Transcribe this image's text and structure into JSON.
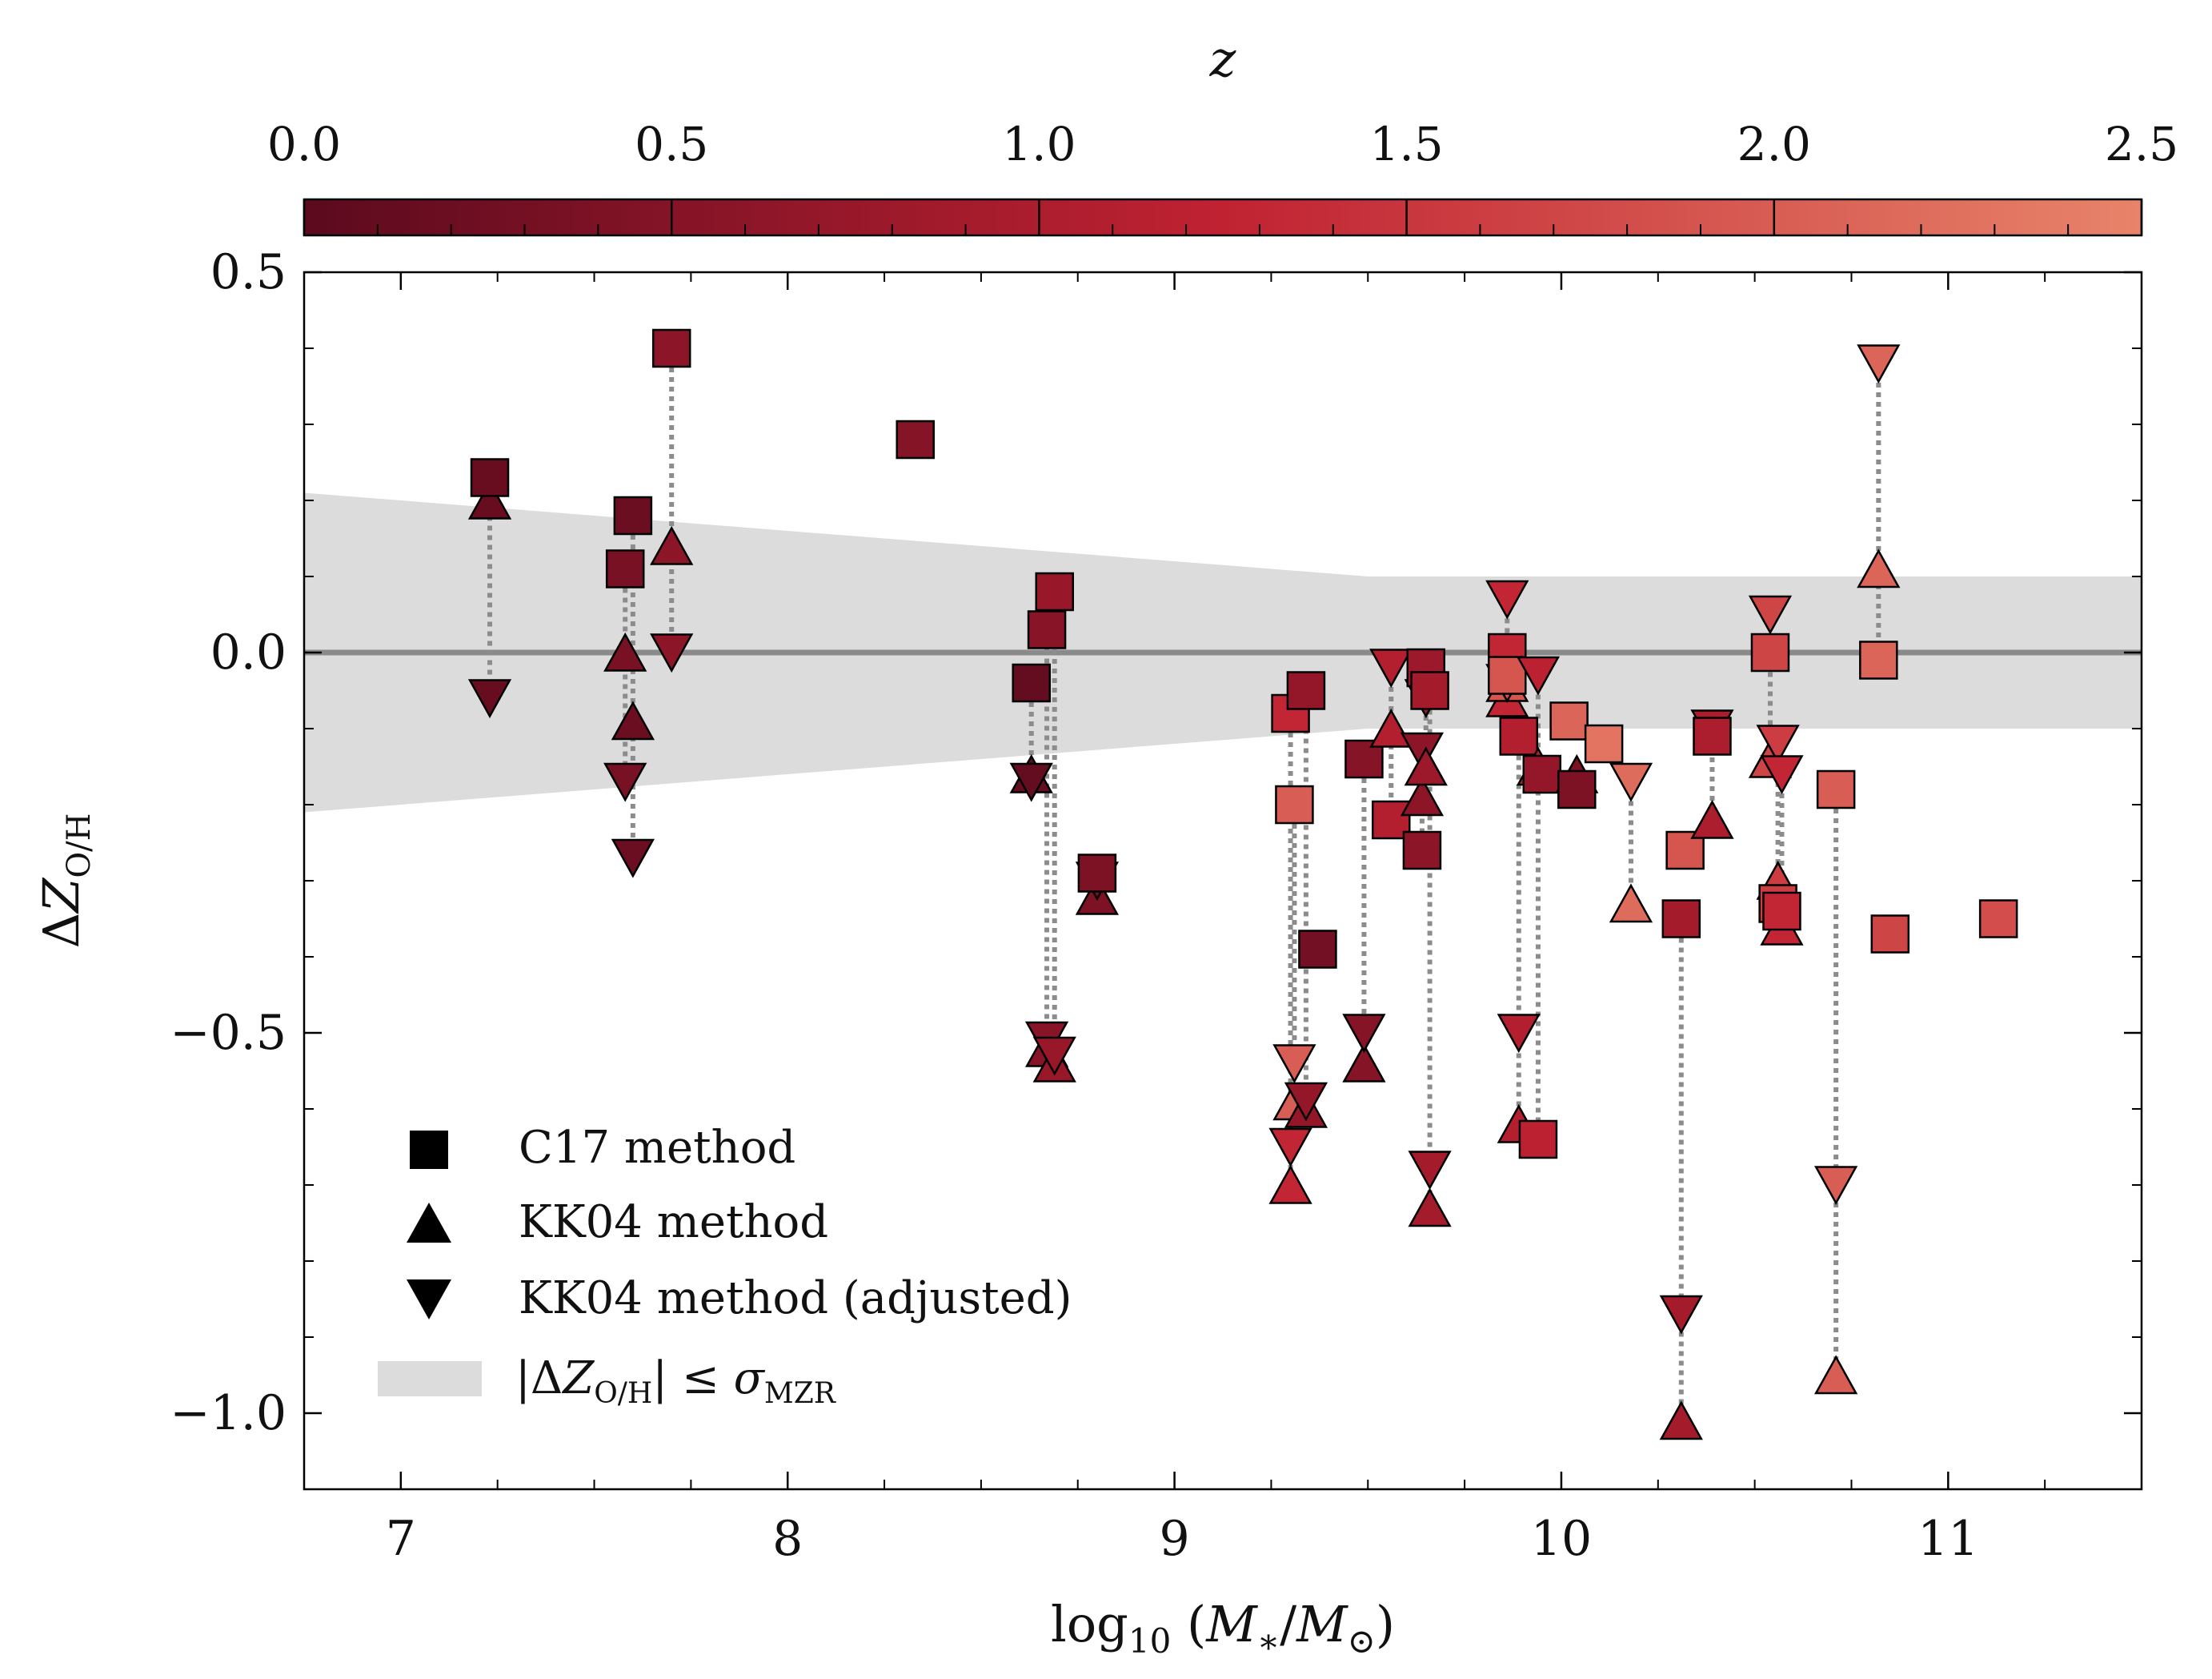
{
  "chart_data": {
    "type": "scatter",
    "xlabel": "log10 (M*/M⊙)",
    "ylabel": "ΔZO/H",
    "xlim": [
      6.75,
      11.5
    ],
    "ylim": [
      -1.1,
      0.5
    ],
    "xticks": [
      7,
      8,
      9,
      10,
      11
    ],
    "xtick_labels": [
      "7",
      "8",
      "9",
      "10",
      "11"
    ],
    "yticks": [
      0.5,
      0.0,
      -0.5,
      -1.0
    ],
    "ytick_labels": [
      "0.5",
      "0.0",
      "−0.5",
      "−1.0"
    ],
    "grid": false,
    "zero_line": 0.0,
    "colorbar": {
      "label": "z",
      "range": [
        0.0,
        2.5
      ],
      "ticks": [
        0.0,
        0.5,
        1.0,
        1.5,
        2.0,
        2.5
      ],
      "tick_labels": [
        "0.0",
        "0.5",
        "1.0",
        "1.5",
        "2.0",
        "2.5"
      ],
      "color_low": "#5c0a1e",
      "color_mid": "#c02232",
      "color_high": "#e8846a"
    },
    "sigma_band": {
      "label": "|ΔZO/H| ≤ σMZR",
      "color": "#dcdcdc",
      "x": [
        6.75,
        9.5,
        11.5
      ],
      "half_width": [
        0.21,
        0.1,
        0.1
      ]
    },
    "legend": {
      "position": "lower-left",
      "entries": [
        {
          "label": "C17 method",
          "marker": "square"
        },
        {
          "label": "KK04 method",
          "marker": "triangle-up"
        },
        {
          "label": "KK04 method (adjusted)",
          "marker": "triangle-down"
        },
        {
          "label": "|ΔZO/H| ≤ σMZR",
          "marker": "band"
        }
      ]
    },
    "galaxies": [
      {
        "x": 7.23,
        "z": 0.15,
        "c17": 0.23,
        "kk04": 0.2,
        "kk04_adj": -0.06
      },
      {
        "x": 7.58,
        "z": 0.35,
        "c17": 0.11,
        "kk04": 0.0,
        "kk04_adj": -0.17
      },
      {
        "x": 7.6,
        "z": 0.2,
        "c17": 0.18,
        "kk04": -0.09,
        "kk04_adj": -0.27
      },
      {
        "x": 7.7,
        "z": 0.6,
        "c17": 0.4,
        "kk04": 0.14,
        "kk04_adj": 0.0
      },
      {
        "x": 8.33,
        "z": 0.5,
        "c17": 0.28
      },
      {
        "x": 8.63,
        "z": 0.1,
        "c17": -0.04,
        "kk04": -0.16,
        "kk04_adj": -0.17
      },
      {
        "x": 8.67,
        "z": 0.55,
        "c17": 0.03,
        "kk04": -0.52,
        "kk04_adj": -0.51
      },
      {
        "x": 8.69,
        "z": 0.75,
        "c17": 0.08,
        "kk04": -0.54,
        "kk04_adj": -0.53
      },
      {
        "x": 8.8,
        "z": 0.4,
        "c17": -0.29,
        "kk04": -0.32,
        "kk04_adj": -0.3
      },
      {
        "x": 9.3,
        "z": 1.3,
        "c17": -0.08,
        "kk04": -0.7,
        "kk04_adj": -0.65
      },
      {
        "x": 9.31,
        "z": 2.0,
        "c17": -0.2,
        "kk04": -0.59,
        "kk04_adj": -0.54
      },
      {
        "x": 9.34,
        "z": 0.7,
        "c17": -0.05,
        "kk04": -0.6,
        "kk04_adj": -0.59
      },
      {
        "x": 9.37,
        "z": 0.3,
        "c17": -0.39
      },
      {
        "x": 9.49,
        "z": 0.5,
        "c17": -0.14,
        "kk04": -0.54,
        "kk04_adj": -0.5
      },
      {
        "x": 9.56,
        "z": 1.1,
        "c17": -0.22,
        "kk04": -0.1,
        "kk04_adj": -0.02
      },
      {
        "x": 9.64,
        "z": 0.6,
        "c17": -0.26,
        "kk04": -0.19,
        "kk04_adj": -0.13
      },
      {
        "x": 9.65,
        "z": 0.8,
        "c17": -0.02,
        "kk04": -0.15,
        "kk04_adj": -0.06
      },
      {
        "x": 9.66,
        "z": 0.9,
        "c17": -0.05,
        "kk04": -0.73,
        "kk04_adj": -0.68
      },
      {
        "x": 9.86,
        "z": 1.3,
        "c17": -0.0,
        "kk04": -0.06,
        "kk04_adj": 0.07
      },
      {
        "x": 9.86,
        "z": 1.9,
        "c17": -0.03,
        "kk04": -0.04,
        "kk04_adj": -0.04
      },
      {
        "x": 9.89,
        "z": 1.1,
        "c17": -0.11,
        "kk04": -0.62,
        "kk04_adj": -0.5
      },
      {
        "x": 9.94,
        "z": 1.2,
        "c17": -0.64,
        "kk04": -0.15,
        "kk04_adj": -0.03
      },
      {
        "x": 9.95,
        "z": 0.7,
        "c17": -0.16
      },
      {
        "x": 10.04,
        "z": 0.4,
        "c17": -0.18,
        "kk04": -0.16
      },
      {
        "x": 10.02,
        "z": 2.1,
        "c17": -0.09
      },
      {
        "x": 10.11,
        "z": 2.3,
        "c17": -0.12
      },
      {
        "x": 10.18,
        "z": 2.2,
        "kk04": -0.33,
        "kk04_adj": -0.17
      },
      {
        "x": 10.31,
        "z": 0.9,
        "c17": -0.35,
        "kk04": -1.01,
        "kk04_adj": -0.87
      },
      {
        "x": 10.32,
        "z": 1.9,
        "c17": -0.26
      },
      {
        "x": 10.39,
        "z": 1.0,
        "c17": -0.11,
        "kk04": -0.22,
        "kk04_adj": -0.1
      },
      {
        "x": 10.54,
        "z": 1.7,
        "c17": 0.0,
        "kk04": -0.14,
        "kk04_adj": 0.05
      },
      {
        "x": 10.56,
        "z": 1.6,
        "c17": -0.33,
        "kk04": -0.3,
        "kk04_adj": -0.12
      },
      {
        "x": 10.57,
        "z": 1.3,
        "c17": -0.34,
        "kk04": -0.36,
        "kk04_adj": -0.16
      },
      {
        "x": 10.71,
        "z": 2.0,
        "c17": -0.18,
        "kk04": -0.95,
        "kk04_adj": -0.7
      },
      {
        "x": 10.82,
        "z": 2.1,
        "c17": -0.01,
        "kk04": 0.11,
        "kk04_adj": 0.38
      },
      {
        "x": 10.85,
        "z": 1.7,
        "c17": -0.37
      },
      {
        "x": 11.13,
        "z": 1.8,
        "c17": -0.35
      }
    ]
  }
}
